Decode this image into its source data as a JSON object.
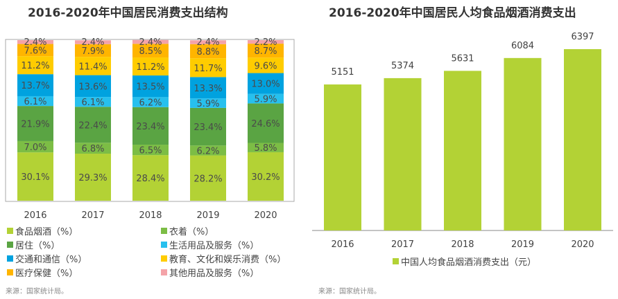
{
  "chart_data": [
    {
      "type": "bar",
      "stacked": true,
      "title": "2016-2020年中国居民消费支出结构",
      "categories": [
        "2016",
        "2017",
        "2018",
        "2019",
        "2020"
      ],
      "ylim": [
        0,
        100
      ],
      "grid": false,
      "legend_placement": "bottom",
      "series": [
        {
          "name": "食品烟酒（%）",
          "color": "#b3d235",
          "values": [
            30.1,
            29.3,
            28.4,
            28.2,
            30.2
          ]
        },
        {
          "name": "衣着（%）",
          "color": "#7cbd45",
          "values": [
            7.0,
            6.8,
            6.5,
            6.2,
            5.8
          ]
        },
        {
          "name": "居住（%）",
          "color": "#5aa443",
          "values": [
            21.9,
            22.4,
            23.4,
            23.4,
            24.6
          ]
        },
        {
          "name": "生活用品及服务（%）",
          "color": "#27c0ee",
          "values": [
            6.1,
            6.1,
            6.2,
            5.9,
            5.9
          ]
        },
        {
          "name": "交通和通信（%）",
          "color": "#00a2df",
          "values": [
            13.7,
            13.6,
            13.5,
            13.3,
            13.0
          ]
        },
        {
          "name": "教育、文化和娱乐消费（%）",
          "color": "#ffcc00",
          "values": [
            11.2,
            11.4,
            11.2,
            11.7,
            9.6
          ]
        },
        {
          "name": "医疗保健（%）",
          "color": "#ffb500",
          "values": [
            7.6,
            7.9,
            8.5,
            8.8,
            8.7
          ]
        },
        {
          "name": "其他用品及服务（%）",
          "color": "#f4a3a8",
          "values": [
            2.4,
            2.4,
            2.4,
            2.4,
            2.2
          ]
        }
      ],
      "source": "来源：国家统计局。"
    },
    {
      "type": "bar",
      "title": "2016-2020年中国居民人均食品烟酒消费支出",
      "categories": [
        "2016",
        "2017",
        "2018",
        "2019",
        "2020"
      ],
      "ylim": [
        0,
        6397
      ],
      "grid": false,
      "legend_placement": "bottom",
      "series": [
        {
          "name": "中国人均食品烟酒消费支出（元）",
          "color": "#b3d235",
          "values": [
            5151,
            5374,
            5631,
            6084,
            6397
          ]
        }
      ],
      "source": "来源：国家统计局。"
    }
  ]
}
